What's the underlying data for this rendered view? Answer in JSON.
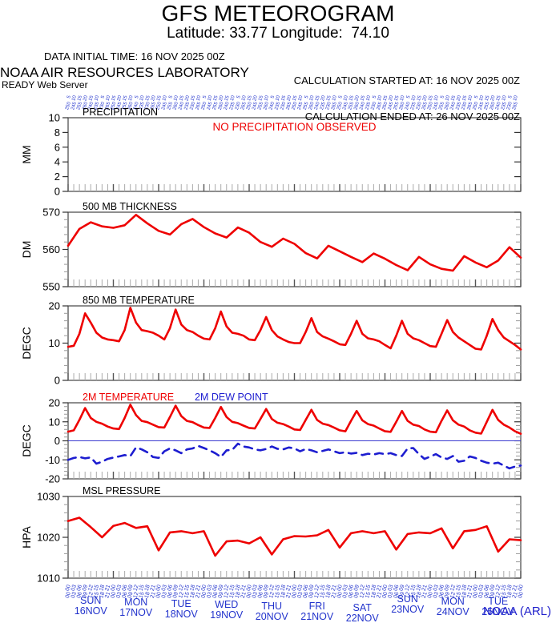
{
  "header": {
    "title": "GFS METEOROGRAM",
    "subtitle": "Latitude: 33.77 Longitude:  74.10",
    "data_initial_time": "DATA INITIAL TIME: 16 NOV 2025 00Z",
    "calc_started": "CALCULATION STARTED AT: 16 NOV 2025 00Z",
    "calc_ended": "CALCULATION ENDED AT: 26 NOV 2025 00Z",
    "lab": "NOAA AIR RESOURCES LABORATORY",
    "server": "READY Web Server"
  },
  "footer": {
    "credit": "NOAA (ARL)"
  },
  "colors": {
    "red": "#ee0000",
    "blue": "#1d1dd0",
    "axis_blue": "#2233cc",
    "tick_gray": "#aaaaaa",
    "tick_dark": "#555555",
    "box": "#444444"
  },
  "xaxis": {
    "start": "16 NOV 2025 00Z",
    "end": "26 NOV 2025 00Z",
    "hours_total": 240,
    "tick_interval_hours": 3,
    "hour_labels": [
      "00",
      "03",
      "06",
      "09",
      "12",
      "15",
      "18",
      "21"
    ],
    "days": [
      {
        "name": "SUN",
        "date": "16NOV"
      },
      {
        "name": "MON",
        "date": "17NOV"
      },
      {
        "name": "TUE",
        "date": "18NOV"
      },
      {
        "name": "WED",
        "date": "19NOV"
      },
      {
        "name": "THU",
        "date": "20NOV"
      },
      {
        "name": "FRI",
        "date": "21NOV"
      },
      {
        "name": "SAT",
        "date": "22NOV"
      },
      {
        "name": "SUN",
        "date": "23NOV"
      },
      {
        "name": "MON",
        "date": "24NOV"
      },
      {
        "name": "TUE",
        "date": "25NOV"
      }
    ]
  },
  "wind_row": {
    "speed_tokens": [
      "5",
      "10",
      "15",
      "20",
      "15",
      "10"
    ],
    "direction_tokens": [
      "250",
      "245",
      "255",
      "260",
      "240",
      "235",
      "230",
      "265"
    ]
  },
  "chart_data": [
    {
      "panel": "precipitation",
      "type": "line",
      "title": "PRECIPITATION",
      "ylabel": "MM",
      "ylim": [
        0,
        10
      ],
      "yticks": [
        0,
        2,
        4,
        6,
        8,
        10
      ],
      "annotation": "NO PRECIPITATION OBSERVED",
      "series": []
    },
    {
      "panel": "500mb-thickness",
      "type": "line",
      "title": "500 MB  THICKNESS",
      "ylabel": "DM",
      "ylim": [
        550,
        570
      ],
      "yticks": [
        550,
        560,
        570
      ],
      "x_step_hours": 6,
      "series": [
        {
          "name": "500 MB THICKNESS",
          "color": "#ee0000",
          "style": "solid",
          "values": [
            561.0,
            565.5,
            567.3,
            566.2,
            565.8,
            566.5,
            569.3,
            567.0,
            565.0,
            564.0,
            566.8,
            568.2,
            566.0,
            564.3,
            563.2,
            565.9,
            564.5,
            562.0,
            560.7,
            562.9,
            561.5,
            559.0,
            557.6,
            561.0,
            559.5,
            558.0,
            556.6,
            558.9,
            557.5,
            555.8,
            554.4,
            558.0,
            556.0,
            554.8,
            554.3,
            558.2,
            556.5,
            555.2,
            557.0,
            560.6,
            557.8
          ]
        }
      ]
    },
    {
      "panel": "850mb-temperature",
      "type": "line",
      "title": "850 MB  TEMPERATURE",
      "ylabel": "DEGC",
      "ylim": [
        0,
        20
      ],
      "yticks": [
        0,
        10,
        20
      ],
      "x_step_hours": 3,
      "series": [
        {
          "name": "850 MB TEMPERATURE",
          "color": "#ee0000",
          "style": "solid",
          "values": [
            9.0,
            9.3,
            12.5,
            18.0,
            15.5,
            12.8,
            11.5,
            11.0,
            10.8,
            10.5,
            13.5,
            19.5,
            15.5,
            13.5,
            13.2,
            12.8,
            12.0,
            11.0,
            14.0,
            19.0,
            15.0,
            13.5,
            13.0,
            12.0,
            11.2,
            11.0,
            14.0,
            18.5,
            14.5,
            12.8,
            12.5,
            12.0,
            11.0,
            10.8,
            13.5,
            17.0,
            13.5,
            11.8,
            11.0,
            10.3,
            10.0,
            10.0,
            13.0,
            16.7,
            13.0,
            11.8,
            11.2,
            10.5,
            9.7,
            9.5,
            12.5,
            16.0,
            12.5,
            11.3,
            11.0,
            10.5,
            9.5,
            8.6,
            12.0,
            16.0,
            12.5,
            11.3,
            10.8,
            10.0,
            9.2,
            9.0,
            12.5,
            16.2,
            13.0,
            11.5,
            10.5,
            9.5,
            8.5,
            8.3,
            12.0,
            16.5,
            13.5,
            11.5,
            10.5,
            9.5,
            8.3
          ]
        }
      ]
    },
    {
      "panel": "2m-temp-dewpoint",
      "type": "line",
      "ylabel": "DEGC",
      "ylim": [
        -20,
        20
      ],
      "yticks": [
        -20,
        -10,
        0,
        10,
        20
      ],
      "x_step_hours": 3,
      "zero_line": true,
      "legend": [
        {
          "label": "2M TEMPERATURE",
          "color": "#ee0000"
        },
        {
          "label": "2M  DEW POINT",
          "color": "#1d1dd0"
        }
      ],
      "series": [
        {
          "name": "2M TEMPERATURE",
          "color": "#ee0000",
          "style": "solid",
          "values": [
            4.8,
            5.5,
            11.0,
            17.2,
            12.0,
            10.0,
            9.0,
            7.5,
            6.5,
            6.2,
            12.0,
            19.0,
            13.5,
            10.5,
            9.8,
            8.5,
            7.2,
            7.0,
            12.5,
            18.5,
            13.0,
            10.5,
            9.8,
            8.3,
            7.0,
            6.8,
            12.0,
            17.8,
            12.5,
            10.0,
            9.3,
            8.0,
            6.8,
            6.5,
            11.5,
            16.7,
            11.5,
            9.5,
            8.8,
            7.5,
            6.0,
            5.7,
            11.0,
            16.3,
            11.0,
            9.0,
            8.3,
            7.0,
            5.5,
            5.0,
            10.5,
            15.7,
            10.8,
            8.8,
            8.0,
            6.5,
            5.0,
            4.7,
            10.0,
            15.7,
            10.5,
            8.5,
            7.8,
            6.0,
            4.8,
            4.5,
            10.5,
            16.0,
            10.8,
            8.5,
            7.5,
            5.5,
            4.3,
            3.8,
            10.0,
            16.3,
            11.0,
            8.5,
            7.0,
            5.0,
            3.7
          ]
        },
        {
          "name": "2M DEW POINT",
          "color": "#1d1dd0",
          "style": "dashed",
          "values": [
            -10.0,
            -9.0,
            -8.5,
            -9.2,
            -8.7,
            -12.0,
            -11.0,
            -9.5,
            -8.8,
            -8.2,
            -7.5,
            -8.0,
            -3.5,
            -4.5,
            -6.0,
            -8.5,
            -9.0,
            -5.5,
            -4.0,
            -5.0,
            -6.5,
            -4.5,
            -4.0,
            -2.7,
            -3.8,
            -5.0,
            -6.5,
            -8.5,
            -5.0,
            -4.8,
            -1.5,
            -3.0,
            -3.5,
            -4.5,
            -5.0,
            -4.3,
            -3.0,
            -4.2,
            -4.5,
            -3.5,
            -4.0,
            -5.5,
            -4.3,
            -5.0,
            -6.0,
            -5.3,
            -4.5,
            -5.5,
            -6.5,
            -6.0,
            -6.7,
            -6.3,
            -7.5,
            -6.8,
            -7.2,
            -6.5,
            -7.0,
            -6.5,
            -7.5,
            -8.0,
            -4.0,
            -3.8,
            -7.0,
            -9.5,
            -8.3,
            -7.0,
            -8.7,
            -9.5,
            -8.0,
            -11.0,
            -10.5,
            -8.2,
            -9.0,
            -10.5,
            -11.5,
            -12.0,
            -11.5,
            -13.0,
            -14.5,
            -13.5,
            -13.0
          ]
        }
      ]
    },
    {
      "panel": "msl-pressure",
      "type": "line",
      "title": "MSL PRESSURE",
      "ylabel": "HPA",
      "ylim": [
        1010,
        1030
      ],
      "yticks": [
        1010,
        1020,
        1030
      ],
      "x_step_hours": 6,
      "series": [
        {
          "name": "MSL PRESSURE",
          "color": "#ee0000",
          "style": "solid",
          "values": [
            1024.0,
            1024.8,
            1022.5,
            1020.0,
            1022.8,
            1023.5,
            1022.3,
            1022.7,
            1016.8,
            1021.2,
            1021.5,
            1021.0,
            1021.5,
            1015.5,
            1019.0,
            1019.2,
            1018.5,
            1020.0,
            1015.8,
            1019.5,
            1020.3,
            1020.2,
            1020.5,
            1021.8,
            1017.5,
            1021.0,
            1021.5,
            1021.0,
            1021.5,
            1017.0,
            1020.8,
            1021.2,
            1021.0,
            1022.2,
            1017.3,
            1021.5,
            1021.8,
            1022.7,
            1016.5,
            1019.5,
            1019.3
          ]
        }
      ]
    }
  ]
}
